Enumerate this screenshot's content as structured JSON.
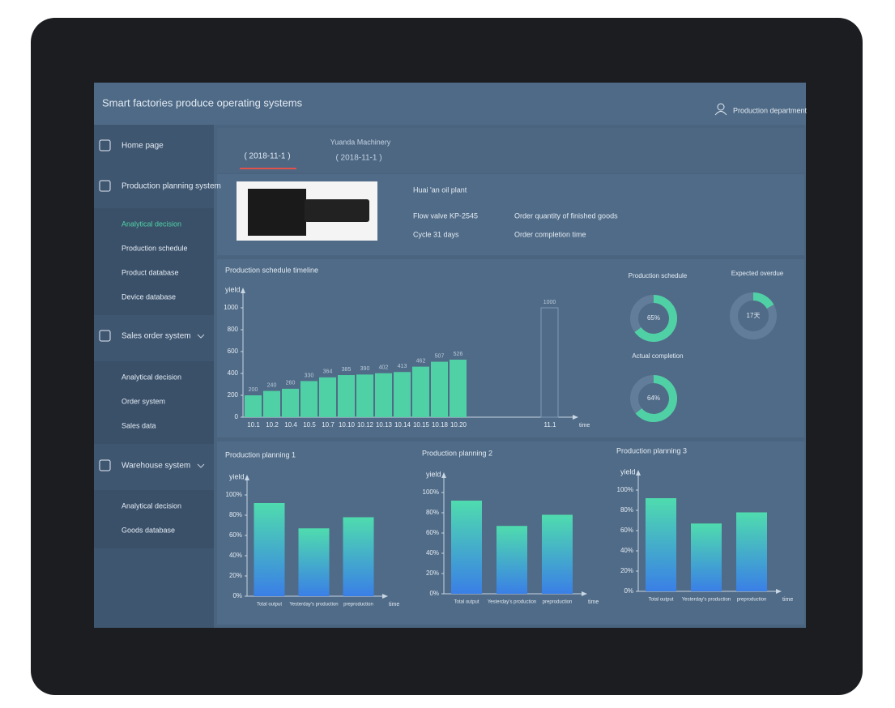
{
  "header": {
    "title": "Smart factories produce operating systems",
    "user": "Production department"
  },
  "sidebar": [
    {
      "label": "Home page"
    },
    {
      "label": "Production planning system",
      "items": [
        "Analytical decision",
        "Production schedule",
        "Product database",
        "Device database"
      ]
    },
    {
      "label": "Sales order system",
      "items": [
        "Analytical decision",
        "Order system",
        "Sales data"
      ]
    },
    {
      "label": "Warehouse system",
      "items": [
        "Analytical decision",
        "Goods database"
      ]
    }
  ],
  "tabs": [
    "( 2018-11-1 )",
    "Yuanda Machinery",
    "( 2018-11-1 )"
  ],
  "info": {
    "plant": "Huai 'an oil plant",
    "product": "Flow valve KP-2545",
    "order_quantity": "Order quantity of finished goods",
    "cycle": "Cycle 31 days",
    "completion": "Order completion time"
  },
  "chart_data": [
    {
      "type": "bar",
      "title": "Production schedule timeline",
      "y_label": "yield",
      "x_label": "time",
      "categories": [
        "10.1",
        "10.2",
        "10.4",
        "10.5",
        "10.7",
        "10.10",
        "10.12",
        "10.13",
        "10.14",
        "10.15",
        "10.18",
        "10.20",
        "11.1"
      ],
      "series": [
        {
          "color": "#4fd1a5",
          "fill": true,
          "values": [
            200,
            240,
            260,
            330,
            364,
            385,
            390,
            402,
            413,
            462,
            507,
            526,
            null
          ]
        },
        {
          "color": "#7d98b4",
          "fill": false,
          "values": [
            null,
            null,
            null,
            null,
            null,
            null,
            null,
            null,
            null,
            null,
            null,
            null,
            1000
          ]
        }
      ],
      "ylim": [
        0,
        1000
      ],
      "yticks": [
        0,
        200,
        400,
        600,
        800,
        1000
      ]
    },
    {
      "type": "donut",
      "title": "Production schedule",
      "values": [
        65
      ],
      "value_labels": [
        "65%"
      ],
      "color": "#4fd1a5"
    },
    {
      "type": "donut",
      "title": "Expected overdue",
      "values": [
        17
      ],
      "value_labels": [
        "17天"
      ],
      "color": "#4fd1a5"
    },
    {
      "type": "donut",
      "title": "Actual completion",
      "values": [
        64
      ],
      "value_labels": [
        "64%"
      ],
      "color": "#4fd1a5"
    },
    {
      "type": "bar",
      "title": "Production planning 1",
      "y_label": "yield",
      "x_label": "time",
      "categories": [
        "Total output",
        "Yesterday's production",
        "preproduction"
      ],
      "values": [
        92,
        67,
        78
      ],
      "ylim": [
        0,
        100
      ],
      "yticks": [
        {
          "value": 0,
          "label": "0%"
        },
        {
          "value": 20,
          "label": "20%"
        },
        {
          "value": 40,
          "label": "40%"
        },
        {
          "value": 60,
          "label": "60%"
        },
        {
          "value": 80,
          "label": "80%"
        },
        {
          "value": 100,
          "label": "100%"
        }
      ],
      "gradient": [
        "#4fdcae",
        "#3a7fe6"
      ]
    },
    {
      "type": "bar",
      "title": "Production planning 2",
      "y_label": "yield",
      "x_label": "time",
      "categories": [
        "Total output",
        "Yesterday's production",
        "preproduction"
      ],
      "values": [
        92,
        67,
        78
      ],
      "ylim": [
        0,
        100
      ],
      "yticks": [
        {
          "value": 0,
          "label": "0%"
        },
        {
          "value": 20,
          "label": "20%"
        },
        {
          "value": 40,
          "label": "40%"
        },
        {
          "value": 60,
          "label": "60%"
        },
        {
          "value": 80,
          "label": "80%"
        },
        {
          "value": 100,
          "label": "100%"
        }
      ],
      "gradient": [
        "#4fdcae",
        "#3a7fe6"
      ]
    },
    {
      "type": "bar",
      "title": "Production planning 3",
      "y_label": "yield",
      "x_label": "time",
      "categories": [
        "Total output",
        "Yesterday's production",
        "preproduction"
      ],
      "values": [
        92,
        67,
        78
      ],
      "ylim": [
        0,
        100
      ],
      "yticks": [
        {
          "value": 0,
          "label": "0%"
        },
        {
          "value": 20,
          "label": "20%"
        },
        {
          "value": 40,
          "label": "40%"
        },
        {
          "value": 60,
          "label": "60%"
        },
        {
          "value": 80,
          "label": "80%"
        },
        {
          "value": 100,
          "label": "100%"
        }
      ],
      "gradient": [
        "#4fdcae",
        "#3a7fe6"
      ]
    }
  ]
}
